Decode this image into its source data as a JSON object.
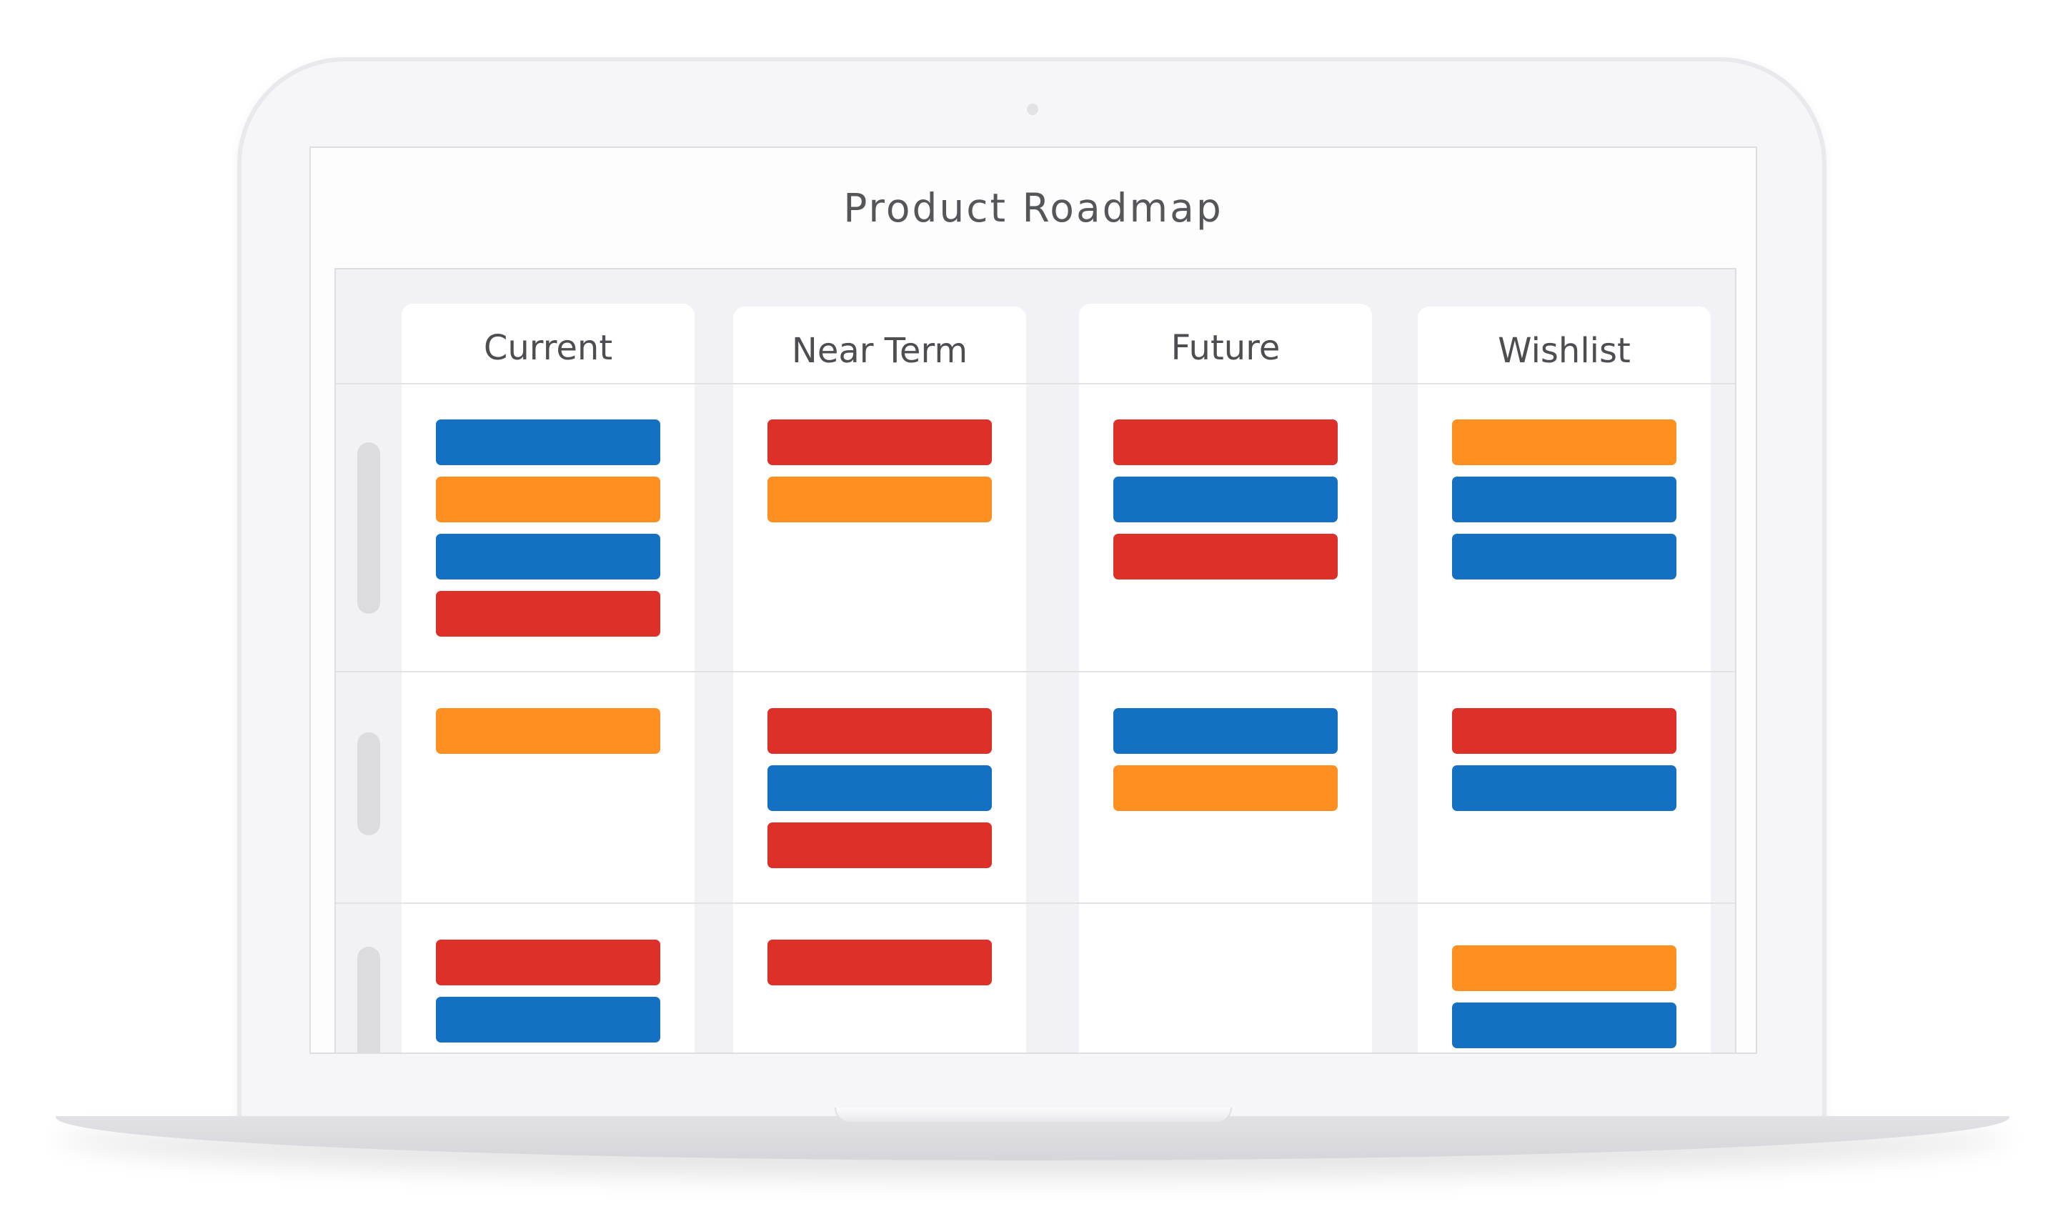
{
  "roadmap": {
    "title": "Product Roadmap",
    "columns": [
      {
        "label": "Current"
      },
      {
        "label": "Near Term"
      },
      {
        "label": "Future"
      },
      {
        "label": "Wishlist"
      }
    ],
    "colors": {
      "blue": "#1470c2",
      "orange": "#fe8f21",
      "red": "#dd3029"
    },
    "lanes": [
      {
        "cells": [
          [
            "blue",
            "orange",
            "blue",
            "red"
          ],
          [
            "red",
            "orange"
          ],
          [
            "red",
            "blue",
            "red"
          ],
          [
            "orange",
            "blue",
            "blue"
          ]
        ]
      },
      {
        "cells": [
          [
            "orange"
          ],
          [
            "red",
            "blue",
            "red"
          ],
          [
            "blue",
            "orange"
          ],
          [
            "red",
            "blue"
          ]
        ]
      },
      {
        "cells": [
          [
            "red",
            "blue"
          ],
          [
            "red"
          ],
          [],
          [
            "orange",
            "blue"
          ]
        ]
      }
    ]
  }
}
